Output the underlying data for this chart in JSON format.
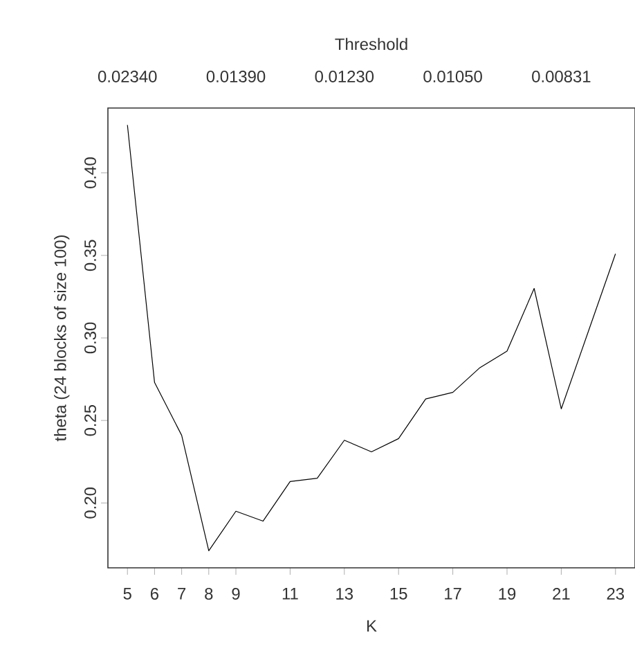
{
  "chart_data": {
    "type": "line",
    "xlabel": "K",
    "ylabel": "theta (24 blocks of size 100)",
    "x2label": "Threshold",
    "x": [
      5,
      6,
      7,
      8,
      9,
      10,
      11,
      12,
      13,
      14,
      15,
      16,
      17,
      18,
      19,
      20,
      21,
      22,
      23
    ],
    "values": [
      0.429,
      0.273,
      0.241,
      0.171,
      0.195,
      0.189,
      0.213,
      0.215,
      0.238,
      0.231,
      0.239,
      0.263,
      0.267,
      0.282,
      0.292,
      0.33,
      0.257,
      0.304,
      0.351
    ],
    "color": "#000000",
    "line_style": "solid",
    "marker": "none",
    "xlim": [
      4.28,
      23.72
    ],
    "ylim": [
      0.1607,
      0.4393
    ],
    "xticks": [
      5,
      6,
      7,
      8,
      9,
      11,
      13,
      15,
      17,
      19,
      21,
      23
    ],
    "yticks": [
      {
        "value": 0.2,
        "label": "0.20"
      },
      {
        "value": 0.25,
        "label": "0.25"
      },
      {
        "value": 0.3,
        "label": "0.30"
      },
      {
        "value": 0.35,
        "label": "0.35"
      },
      {
        "value": 0.4,
        "label": "0.40"
      }
    ],
    "annotations": [
      "0.02340",
      "0.01390",
      "0.01230",
      "0.01050",
      "0.00831"
    ]
  }
}
